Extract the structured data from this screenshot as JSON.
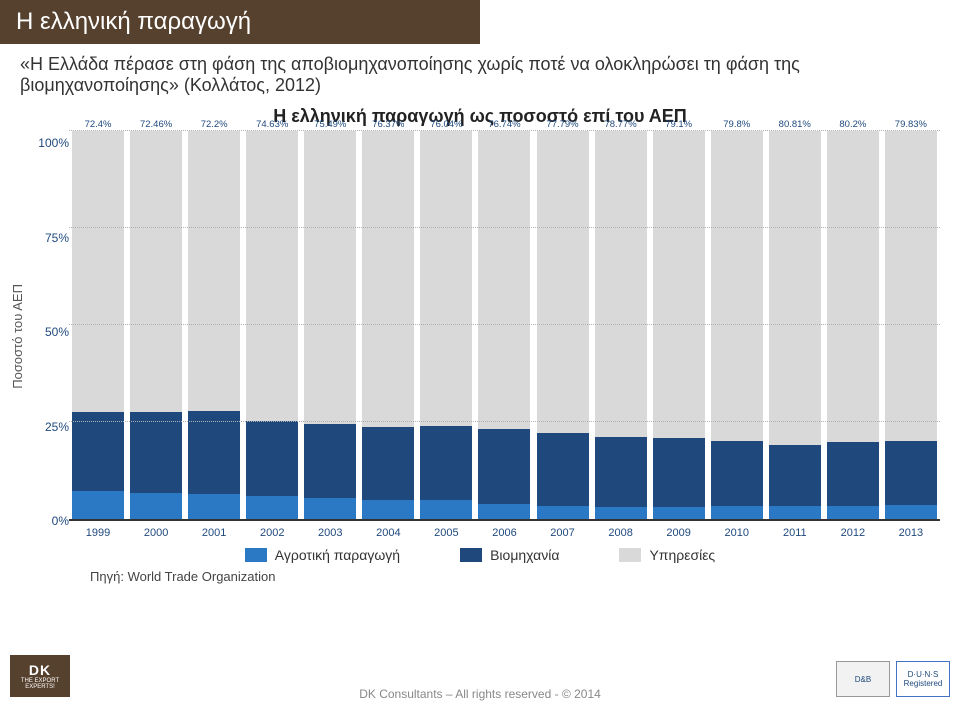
{
  "title": "Η ελληνική παραγωγή",
  "quote": "«Η Ελλάδα πέρασε στη φάση της αποβιομηχανοποίησης χωρίς ποτέ να ολοκληρώσει τη φάση της βιομηχανοποίησης» (Κολλάτος, 2012)",
  "chart": {
    "title": "Η ελληνική παραγωγή ως ποσοστό επί του ΑΕΠ",
    "y_axis_label": "Ποσοστό του ΑΕΠ",
    "y_ticks": [
      "100%",
      "75%",
      "50%",
      "25%",
      "0%"
    ],
    "y_tick_positions": [
      100,
      75,
      50,
      25,
      0
    ],
    "ymax": 100,
    "years": [
      "1999",
      "2000",
      "2001",
      "2002",
      "2003",
      "2004",
      "2005",
      "2006",
      "2007",
      "2008",
      "2009",
      "2010",
      "2011",
      "2012",
      "2013"
    ],
    "series": {
      "agriculture": {
        "color": "#2b78c4",
        "label": "Αγροτική παραγωγή",
        "values": [
          7.11,
          6.59,
          6.4,
          5.88,
          5.48,
          4.91,
          4.81,
          3.75,
          3.44,
          3.14,
          3.15,
          3.23,
          3.37,
          3.37,
          3.71
        ],
        "labels": [
          "7.11%",
          "6.59%",
          "6.4%",
          "5.88%",
          "5.48%",
          "4.91%",
          "4.81%",
          "3.75%",
          "3.44%",
          "3.14%",
          "3.15%",
          "3.23%",
          "3.37%",
          "3.37%",
          "3.71%"
        ]
      },
      "industry": {
        "color": "#1f497d",
        "label": "Βιομηχανία",
        "values": [
          20.49,
          20.95,
          21.39,
          19.49,
          19.03,
          18.72,
          19.15,
          19.51,
          18.77,
          18.09,
          17.75,
          16.98,
          15.82,
          16.43,
          16.46
        ],
        "labels": [
          "20.49%",
          "20.95%",
          "21.39%",
          "19.49%",
          "19.03%",
          "18.72%",
          "19.15%",
          "19.51%",
          "18.77%",
          "18.09%",
          "17.75%",
          "16.98%",
          "15.82%",
          "16.43%",
          "16.46%"
        ]
      },
      "services": {
        "color": "#d9d9d9",
        "label": "Υπηρεσίες",
        "values": [
          72.4,
          72.46,
          72.2,
          74.63,
          75.49,
          76.37,
          76.04,
          76.74,
          77.79,
          78.77,
          79.1,
          79.8,
          80.81,
          80.2,
          79.83
        ],
        "labels": [
          "72.4%",
          "72.46%",
          "72.2%",
          "74.63%",
          "75.49%",
          "76.37%",
          "76.04%",
          "76.74%",
          "77.79%",
          "78.77%",
          "79.1%",
          "79.8%",
          "80.81%",
          "80.2%",
          "79.83%"
        ]
      }
    },
    "background": "#ffffff",
    "grid_color": "#b0b0b0",
    "axis_text_color": "#1f497d"
  },
  "source": "Πηγή: World Trade Organization",
  "footer": "DK Consultants – All rights reserved - © 2014",
  "logo": {
    "main": "DK",
    "sub": "THE EXPORT EXPERTS!"
  },
  "badges": [
    "D&B",
    "D·U·N·S Registered"
  ]
}
